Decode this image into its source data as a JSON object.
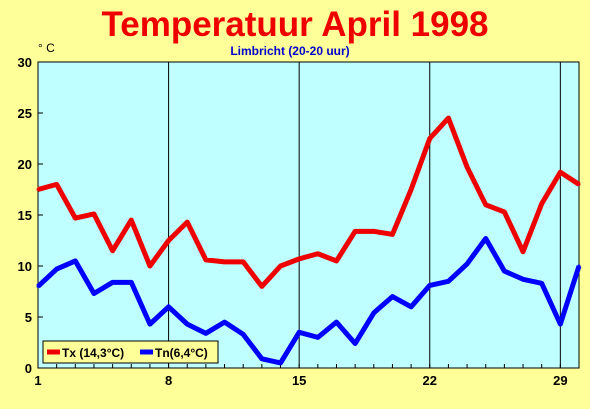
{
  "chart_data": {
    "type": "line",
    "title": "Temperatuur April 1998",
    "subtitle": "Limbricht (20-20 uur)",
    "ylabel": "° C",
    "xlabel": "",
    "x": [
      1,
      2,
      3,
      4,
      5,
      6,
      7,
      8,
      9,
      10,
      11,
      12,
      13,
      14,
      15,
      16,
      17,
      18,
      19,
      20,
      21,
      22,
      23,
      24,
      25,
      26,
      27,
      28,
      29,
      30
    ],
    "xlim": [
      1,
      30
    ],
    "ylim": [
      0,
      30
    ],
    "x_ticks": [
      1,
      8,
      15,
      22,
      29
    ],
    "y_ticks": [
      0,
      5,
      10,
      15,
      20,
      25,
      30
    ],
    "series": [
      {
        "name": "Tx (14,3°C)",
        "color": "#ee0000",
        "values": [
          17.5,
          18.0,
          14.7,
          15.1,
          11.5,
          14.5,
          10.0,
          12.5,
          14.3,
          10.6,
          10.4,
          10.4,
          8.0,
          10.0,
          10.7,
          11.2,
          10.5,
          13.4,
          13.4,
          13.1,
          17.5,
          22.5,
          24.5,
          19.7,
          16.0,
          15.3,
          11.4,
          16.1,
          19.2,
          18.0
        ]
      },
      {
        "name": "Tn(6,4°C)",
        "color": "#0000ff",
        "values": [
          8.0,
          9.7,
          10.5,
          7.3,
          8.4,
          8.4,
          4.3,
          6.0,
          4.3,
          3.4,
          4.5,
          3.3,
          0.9,
          0.5,
          3.5,
          3.0,
          4.5,
          2.4,
          5.4,
          7.0,
          6.0,
          8.1,
          8.5,
          10.2,
          12.7,
          9.5,
          8.7,
          8.3,
          4.3,
          10.0
        ]
      }
    ],
    "grid": {
      "x": true,
      "y": false
    },
    "legend_position": "bottom-left",
    "colors": {
      "page_background": "#ffff99",
      "plot_background": "#c0ffff",
      "title": "#ee0000",
      "subtitle": "#0000cc"
    }
  }
}
